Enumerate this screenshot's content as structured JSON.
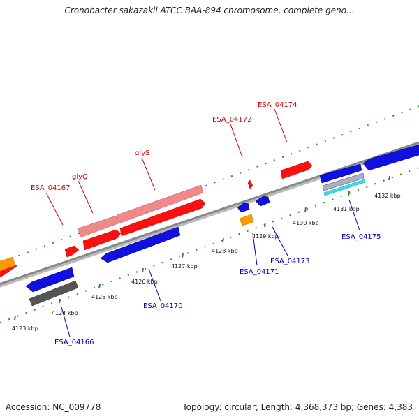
{
  "title": "Cronobacter sakazakii ATCC BAA-894 chromosome, complete geno...",
  "footer": {
    "accession": "Accession: NC_009778",
    "summary": "Topology: circular; Length: 4,368,373 bp; Genes: 4,383"
  },
  "colors": {
    "backbone": "#888888",
    "tick": "#2e8b2e",
    "forward_label": "#cc0000",
    "reverse_label": "#0000aa",
    "gene_red": "#ff1010",
    "gene_pink": "#f08a8a",
    "gene_blue": "#1010e0",
    "gene_orange": "#ff9900",
    "gene_gray": "#555555",
    "gene_cyan": "#33e0f0"
  },
  "ruler": {
    "unit": "kbp",
    "labels": [
      "4123 kbp",
      "4124 kbp",
      "4125 kbp",
      "4126 kbp",
      "4127 kbp",
      "4128 kbp",
      "4129 kbp",
      "4130 kbp",
      "4131 kbp",
      "4132 kbp"
    ]
  },
  "genes": {
    "forward_labels": [
      "ESA_04167",
      "glyQ",
      "glyS",
      "ESA_04172",
      "ESA_04174"
    ],
    "reverse_labels": [
      "ESA_04166",
      "ESA_04170",
      "ESA_04171",
      "ESA_04173",
      "ESA_04175"
    ]
  }
}
